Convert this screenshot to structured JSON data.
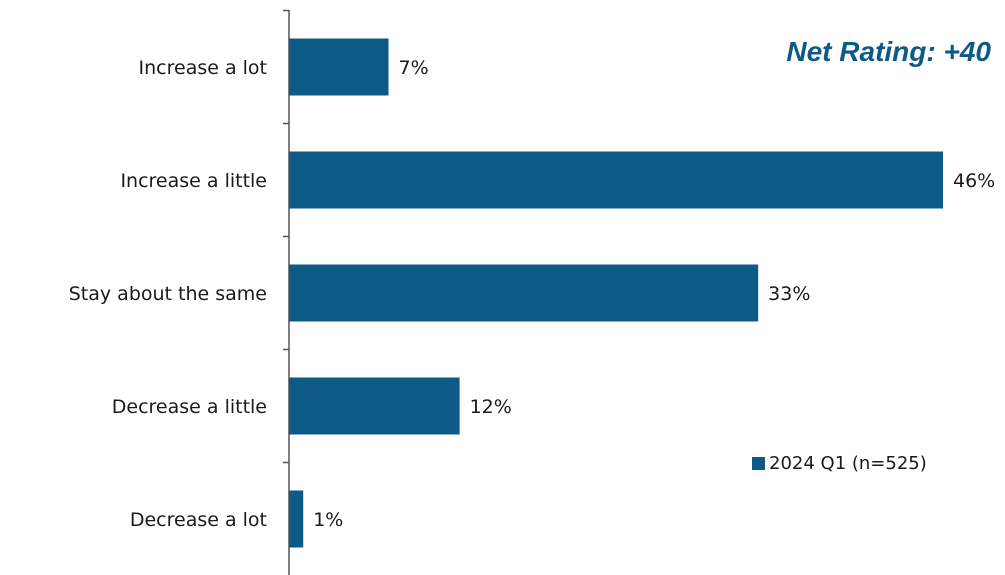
{
  "chart_data": {
    "type": "bar",
    "orientation": "horizontal",
    "categories": [
      "Increase a lot",
      "Increase a little",
      "Stay about the same",
      "Decrease a little",
      "Decrease a lot"
    ],
    "series": [
      {
        "name": "2024 Q1 (n=525)",
        "values": [
          7,
          46,
          33,
          12,
          1
        ],
        "labels": [
          "7%",
          "46%",
          "33%",
          "12%",
          "1%"
        ],
        "color": "#0e5a87"
      }
    ],
    "annotation": "Net Rating: +40",
    "xlim": [
      0,
      46
    ],
    "grid": false,
    "legend_position": "bottom-right"
  },
  "colors": {
    "bar": "#0e5a87",
    "annotation": "#0e5a87",
    "axis": "#555555"
  }
}
